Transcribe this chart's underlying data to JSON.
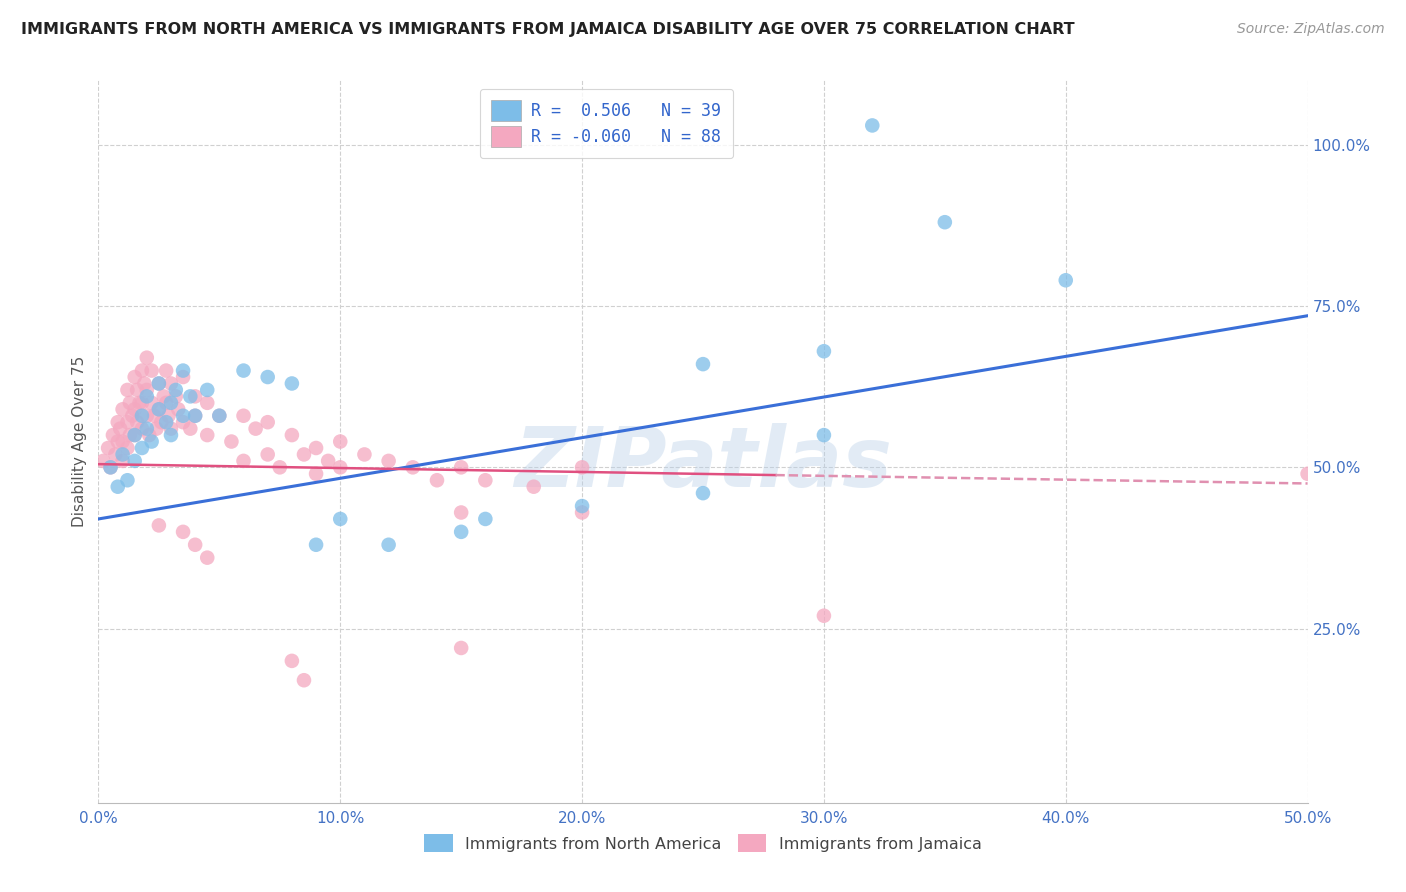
{
  "title": "IMMIGRANTS FROM NORTH AMERICA VS IMMIGRANTS FROM JAMAICA DISABILITY AGE OVER 75 CORRELATION CHART",
  "source": "Source: ZipAtlas.com",
  "ylabel": "Disability Age Over 75",
  "xlim": [
    0.0,
    0.5
  ],
  "ylim": [
    -0.02,
    1.1
  ],
  "xtick_labels": [
    "0.0%",
    "10.0%",
    "20.0%",
    "30.0%",
    "40.0%",
    "50.0%"
  ],
  "xtick_vals": [
    0.0,
    0.1,
    0.2,
    0.3,
    0.4,
    0.5
  ],
  "ytick_labels": [
    "25.0%",
    "50.0%",
    "75.0%",
    "100.0%"
  ],
  "ytick_vals": [
    0.25,
    0.5,
    0.75,
    1.0
  ],
  "legend_r_labels": [
    "R =  0.506",
    "R = -0.060"
  ],
  "legend_n_labels": [
    "N = 39",
    "N = 88"
  ],
  "blue_scatter": [
    [
      0.005,
      0.5
    ],
    [
      0.008,
      0.47
    ],
    [
      0.01,
      0.52
    ],
    [
      0.012,
      0.48
    ],
    [
      0.015,
      0.55
    ],
    [
      0.015,
      0.51
    ],
    [
      0.018,
      0.58
    ],
    [
      0.018,
      0.53
    ],
    [
      0.02,
      0.61
    ],
    [
      0.02,
      0.56
    ],
    [
      0.022,
      0.54
    ],
    [
      0.025,
      0.59
    ],
    [
      0.025,
      0.63
    ],
    [
      0.028,
      0.57
    ],
    [
      0.03,
      0.6
    ],
    [
      0.03,
      0.55
    ],
    [
      0.032,
      0.62
    ],
    [
      0.035,
      0.65
    ],
    [
      0.035,
      0.58
    ],
    [
      0.038,
      0.61
    ],
    [
      0.04,
      0.58
    ],
    [
      0.045,
      0.62
    ],
    [
      0.05,
      0.58
    ],
    [
      0.06,
      0.65
    ],
    [
      0.07,
      0.64
    ],
    [
      0.08,
      0.63
    ],
    [
      0.09,
      0.38
    ],
    [
      0.1,
      0.42
    ],
    [
      0.12,
      0.38
    ],
    [
      0.15,
      0.4
    ],
    [
      0.16,
      0.42
    ],
    [
      0.2,
      0.44
    ],
    [
      0.25,
      0.46
    ],
    [
      0.3,
      0.55
    ],
    [
      0.32,
      1.03
    ],
    [
      0.35,
      0.88
    ],
    [
      0.4,
      0.79
    ],
    [
      0.3,
      0.68
    ],
    [
      0.25,
      0.66
    ]
  ],
  "pink_scatter": [
    [
      0.002,
      0.51
    ],
    [
      0.004,
      0.53
    ],
    [
      0.005,
      0.5
    ],
    [
      0.006,
      0.55
    ],
    [
      0.007,
      0.52
    ],
    [
      0.008,
      0.57
    ],
    [
      0.008,
      0.54
    ],
    [
      0.009,
      0.56
    ],
    [
      0.01,
      0.59
    ],
    [
      0.01,
      0.54
    ],
    [
      0.01,
      0.51
    ],
    [
      0.012,
      0.62
    ],
    [
      0.012,
      0.57
    ],
    [
      0.012,
      0.53
    ],
    [
      0.013,
      0.6
    ],
    [
      0.013,
      0.55
    ],
    [
      0.014,
      0.58
    ],
    [
      0.015,
      0.64
    ],
    [
      0.015,
      0.59
    ],
    [
      0.015,
      0.55
    ],
    [
      0.016,
      0.62
    ],
    [
      0.016,
      0.57
    ],
    [
      0.017,
      0.6
    ],
    [
      0.018,
      0.65
    ],
    [
      0.018,
      0.6
    ],
    [
      0.018,
      0.56
    ],
    [
      0.019,
      0.63
    ],
    [
      0.02,
      0.67
    ],
    [
      0.02,
      0.62
    ],
    [
      0.02,
      0.58
    ],
    [
      0.021,
      0.55
    ],
    [
      0.022,
      0.6
    ],
    [
      0.022,
      0.65
    ],
    [
      0.023,
      0.58
    ],
    [
      0.024,
      0.56
    ],
    [
      0.025,
      0.63
    ],
    [
      0.025,
      0.59
    ],
    [
      0.026,
      0.57
    ],
    [
      0.027,
      0.61
    ],
    [
      0.028,
      0.65
    ],
    [
      0.028,
      0.6
    ],
    [
      0.029,
      0.58
    ],
    [
      0.03,
      0.63
    ],
    [
      0.03,
      0.56
    ],
    [
      0.032,
      0.61
    ],
    [
      0.033,
      0.59
    ],
    [
      0.035,
      0.57
    ],
    [
      0.035,
      0.64
    ],
    [
      0.038,
      0.56
    ],
    [
      0.04,
      0.61
    ],
    [
      0.04,
      0.58
    ],
    [
      0.045,
      0.55
    ],
    [
      0.045,
      0.6
    ],
    [
      0.05,
      0.58
    ],
    [
      0.055,
      0.54
    ],
    [
      0.06,
      0.58
    ],
    [
      0.06,
      0.51
    ],
    [
      0.065,
      0.56
    ],
    [
      0.07,
      0.52
    ],
    [
      0.07,
      0.57
    ],
    [
      0.075,
      0.5
    ],
    [
      0.08,
      0.55
    ],
    [
      0.085,
      0.52
    ],
    [
      0.09,
      0.53
    ],
    [
      0.09,
      0.49
    ],
    [
      0.095,
      0.51
    ],
    [
      0.1,
      0.54
    ],
    [
      0.1,
      0.5
    ],
    [
      0.11,
      0.52
    ],
    [
      0.12,
      0.51
    ],
    [
      0.13,
      0.5
    ],
    [
      0.14,
      0.48
    ],
    [
      0.15,
      0.5
    ],
    [
      0.15,
      0.43
    ],
    [
      0.16,
      0.48
    ],
    [
      0.18,
      0.47
    ],
    [
      0.2,
      0.5
    ],
    [
      0.2,
      0.43
    ],
    [
      0.04,
      0.38
    ],
    [
      0.045,
      0.36
    ],
    [
      0.08,
      0.2
    ],
    [
      0.085,
      0.17
    ],
    [
      0.15,
      0.22
    ],
    [
      0.3,
      0.27
    ],
    [
      0.5,
      0.49
    ],
    [
      0.035,
      0.4
    ],
    [
      0.025,
      0.41
    ]
  ],
  "blue_line": {
    "x0": 0.0,
    "y0": 0.42,
    "x1": 0.5,
    "y1": 0.735
  },
  "pink_line_solid": {
    "x0": 0.0,
    "y0": 0.505,
    "x1": 0.28,
    "y1": 0.488
  },
  "pink_line_dash": {
    "x0": 0.28,
    "y0": 0.488,
    "x1": 0.5,
    "y1": 0.475
  },
  "blue_color": "#7dbde8",
  "pink_color": "#f4a8c0",
  "blue_line_color": "#3a6fd8",
  "pink_line_solid_color": "#e05080",
  "pink_line_dash_color": "#e090b0",
  "watermark": "ZIPatlas",
  "background_color": "#ffffff",
  "grid_color": "#d0d0d0"
}
